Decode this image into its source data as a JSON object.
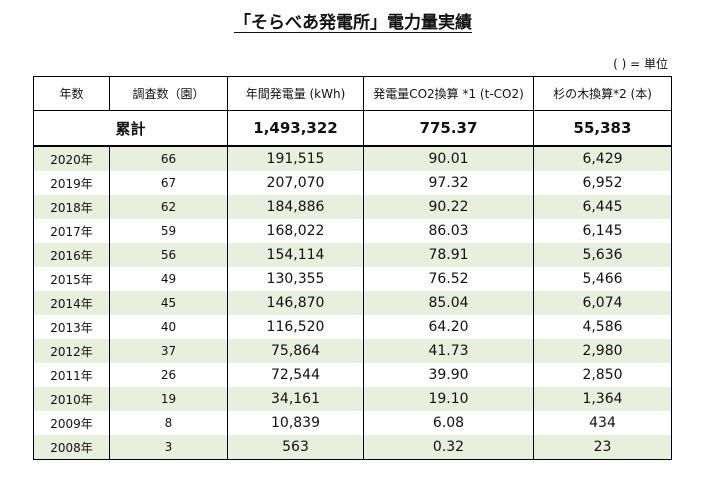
{
  "title": "「そらべあ発電所」電力量実績",
  "unit_note": "( ) = 単位",
  "headers": [
    "年数",
    "調査数（園）",
    "年間発電量 (kWh)",
    "発電量CO2換算 *1 (t-CO2)",
    "杉の木換算*2 (本)"
  ],
  "total": {
    "label": "累計",
    "kwh": "1,493,322",
    "co2": "775.37",
    "trees": "55,383"
  },
  "rows": [
    {
      "year": "2020年",
      "count": "66",
      "kwh": "191,515",
      "co2": "90.01",
      "trees": "6,429"
    },
    {
      "year": "2019年",
      "count": "67",
      "kwh": "207,070",
      "co2": "97.32",
      "trees": "6,952"
    },
    {
      "year": "2018年",
      "count": "62",
      "kwh": "184,886",
      "co2": "90.22",
      "trees": "6,445"
    },
    {
      "year": "2017年",
      "count": "59",
      "kwh": "168,022",
      "co2": "86.03",
      "trees": "6,145"
    },
    {
      "year": "2016年",
      "count": "56",
      "kwh": "154,114",
      "co2": "78.91",
      "trees": "5,636"
    },
    {
      "year": "2015年",
      "count": "49",
      "kwh": "130,355",
      "co2": "76.52",
      "trees": "5,466"
    },
    {
      "year": "2014年",
      "count": "45",
      "kwh": "146,870",
      "co2": "85.04",
      "trees": "6,074"
    },
    {
      "year": "2013年",
      "count": "40",
      "kwh": "116,520",
      "co2": "64.20",
      "trees": "4,586"
    },
    {
      "year": "2012年",
      "count": "37",
      "kwh": "75,864",
      "co2": "41.73",
      "trees": "2,980"
    },
    {
      "year": "2011年",
      "count": "26",
      "kwh": "72,544",
      "co2": "39.90",
      "trees": "2,850"
    },
    {
      "year": "2010年",
      "count": "19",
      "kwh": "34,161",
      "co2": "19.10",
      "trees": "1,364"
    },
    {
      "year": "2009年",
      "count": "8",
      "kwh": "10,839",
      "co2": "6.08",
      "trees": "434"
    },
    {
      "year": "2008年",
      "count": "3",
      "kwh": "563",
      "co2": "0.32",
      "trees": "23"
    }
  ],
  "colors": {
    "row_shade": "#e7efdd",
    "border": "#000000"
  }
}
